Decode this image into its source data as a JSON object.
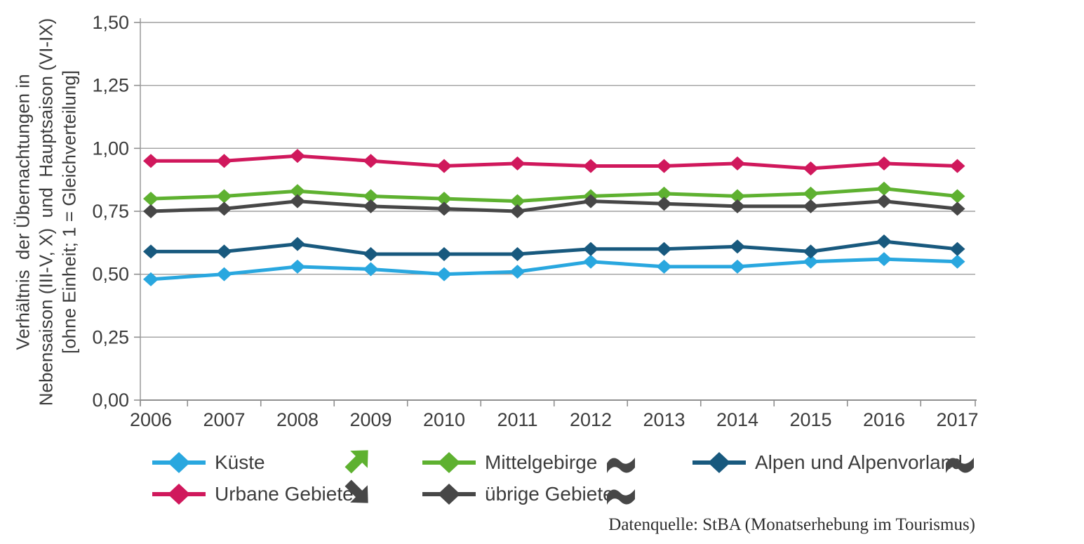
{
  "chart": {
    "y_title_lines": [
      "Verhältnis  der Übernachtungen in",
      "Nebensaison (III-V, X)  und  Hauptsaison (VI-IX)",
      "[ohne Einheit; 1 = Gleichverteilung]"
    ],
    "source": "Datenquelle: StBA (Monatserhebung im Tourismus)"
  },
  "chart_data": {
    "type": "line",
    "title": "",
    "xlabel": "",
    "ylabel": "Verhältnis der Übernachtungen in Nebensaison (III-V, X) und Hauptsaison (VI-IX) [ohne Einheit; 1 = Gleichverteilung]",
    "categories": [
      "2006",
      "2007",
      "2008",
      "2009",
      "2010",
      "2011",
      "2012",
      "2013",
      "2014",
      "2015",
      "2016",
      "2017"
    ],
    "ylim": [
      0,
      1.5
    ],
    "ytick_values": [
      0,
      0.25,
      0.5,
      0.75,
      1.0,
      1.25,
      1.5
    ],
    "ytick_labels": [
      "0,00",
      "0,25",
      "0,50",
      "0,75",
      "1,00",
      "1,25",
      "1,50"
    ],
    "grid": true,
    "marker": "diamond",
    "legend_position": "bottom",
    "series": [
      {
        "name": "Küste",
        "color": "#29A7DF",
        "trend_icon": "trend-up",
        "values": [
          0.48,
          0.5,
          0.53,
          0.52,
          0.5,
          0.51,
          0.55,
          0.53,
          0.53,
          0.55,
          0.56,
          0.55
        ]
      },
      {
        "name": "Urbane Gebiete",
        "color": "#D0185C",
        "trend_icon": "trend-down",
        "values": [
          0.95,
          0.95,
          0.97,
          0.95,
          0.93,
          0.94,
          0.93,
          0.93,
          0.94,
          0.92,
          0.94,
          0.93
        ]
      },
      {
        "name": "Mittelgebirge",
        "color": "#5EB130",
        "trend_icon": "no-trend",
        "values": [
          0.8,
          0.81,
          0.83,
          0.81,
          0.8,
          0.79,
          0.81,
          0.82,
          0.81,
          0.82,
          0.84,
          0.81
        ]
      },
      {
        "name": "übrige Gebiete",
        "color": "#474747",
        "trend_icon": "no-trend",
        "values": [
          0.75,
          0.76,
          0.79,
          0.77,
          0.76,
          0.75,
          0.79,
          0.78,
          0.77,
          0.77,
          0.79,
          0.76
        ]
      },
      {
        "name": "Alpen und Alpenvorland",
        "color": "#18597E",
        "trend_icon": "no-trend",
        "values": [
          0.59,
          0.59,
          0.62,
          0.58,
          0.58,
          0.58,
          0.6,
          0.6,
          0.61,
          0.59,
          0.63,
          0.6
        ]
      }
    ],
    "icon_colors": {
      "trend_up": "#5EB130",
      "trend_down": "#474747",
      "no_trend": "#474747"
    },
    "axis_colors": {
      "grid": "#9f9f9f",
      "axis": "#8f8f8f",
      "text": "#3c3c3c"
    }
  }
}
